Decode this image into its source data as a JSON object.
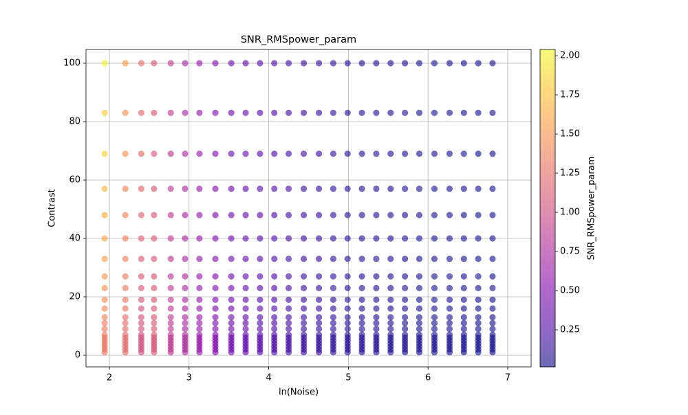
{
  "chart_data": {
    "type": "scatter",
    "title": "SNR_RMSpower_param",
    "x_label": "ln(Noise)",
    "y_label": "Contrast",
    "colorbar_label": "SNR_RMSpower_param",
    "colormap": "plasma",
    "alpha": 0.6,
    "grid": true,
    "xlim": [
      1.706,
      7.294
    ],
    "ylim": [
      -4.0,
      104.7
    ],
    "xticks": [
      2,
      3,
      4,
      5,
      6,
      7
    ],
    "yticks": [
      0,
      20,
      40,
      60,
      80,
      100
    ],
    "clim": [
      0.013,
      2.04
    ],
    "cticks": [
      0.25,
      {
        "value": 0.5,
        "label": "0.50"
      },
      0.75,
      {
        "value": 1.0,
        "label": "1.00"
      },
      1.25,
      {
        "value": 1.5,
        "label": "1.50"
      },
      1.75,
      {
        "value": 2.0,
        "label": "2.00"
      }
    ],
    "x": [
      1.94,
      2.2,
      2.4,
      2.56,
      2.77,
      2.95,
      3.13,
      3.33,
      3.53,
      3.71,
      3.89,
      4.07,
      4.25,
      4.44,
      4.63,
      4.81,
      4.99,
      5.17,
      5.35,
      5.53,
      5.71,
      5.89,
      6.08,
      6.27,
      6.45,
      6.63,
      6.81
    ],
    "y": [
      100,
      83,
      69,
      57,
      48,
      40,
      33,
      27,
      23,
      19,
      16,
      13,
      11,
      9,
      7,
      6,
      5,
      4,
      3,
      2,
      1
    ],
    "values": [
      [
        2.0,
        1.54,
        1.26,
        1.08,
        0.87,
        0.73,
        0.61,
        0.5,
        0.41,
        0.34,
        0.28,
        0.24,
        0.2,
        0.16,
        0.14,
        0.11,
        0.095,
        0.079,
        0.066,
        0.055,
        0.046,
        0.039,
        0.032,
        0.026,
        0.022,
        0.018,
        0.015
      ],
      [
        1.8,
        1.45,
        1.22,
        1.08,
        0.87,
        0.73,
        0.61,
        0.5,
        0.41,
        0.34,
        0.28,
        0.24,
        0.2,
        0.16,
        0.14,
        0.11,
        0.095,
        0.079,
        0.066,
        0.055,
        0.046,
        0.039,
        0.032,
        0.026,
        0.022,
        0.018,
        0.015
      ],
      [
        1.84,
        1.48,
        1.22,
        1.08,
        0.87,
        0.73,
        0.61,
        0.5,
        0.41,
        0.34,
        0.28,
        0.24,
        0.2,
        0.16,
        0.14,
        0.11,
        0.095,
        0.079,
        0.066,
        0.055,
        0.046,
        0.039,
        0.032,
        0.026,
        0.022,
        0.018,
        0.015
      ],
      [
        1.7,
        1.42,
        1.18,
        1.08,
        0.87,
        0.73,
        0.61,
        0.5,
        0.41,
        0.34,
        0.28,
        0.24,
        0.2,
        0.16,
        0.14,
        0.11,
        0.095,
        0.079,
        0.066,
        0.055,
        0.046,
        0.039,
        0.032,
        0.026,
        0.022,
        0.018,
        0.015
      ],
      [
        1.64,
        1.4,
        1.16,
        1.08,
        0.87,
        0.73,
        0.61,
        0.5,
        0.41,
        0.34,
        0.28,
        0.24,
        0.2,
        0.16,
        0.14,
        0.11,
        0.095,
        0.079,
        0.066,
        0.055,
        0.046,
        0.039,
        0.032,
        0.026,
        0.022,
        0.018,
        0.015
      ],
      [
        1.6,
        1.38,
        1.15,
        1.08,
        0.87,
        0.73,
        0.61,
        0.5,
        0.41,
        0.34,
        0.28,
        0.24,
        0.2,
        0.16,
        0.14,
        0.11,
        0.095,
        0.079,
        0.066,
        0.055,
        0.046,
        0.039,
        0.032,
        0.026,
        0.022,
        0.018,
        0.015
      ],
      [
        1.56,
        1.36,
        1.14,
        1.08,
        0.87,
        0.73,
        0.61,
        0.5,
        0.41,
        0.34,
        0.28,
        0.24,
        0.2,
        0.16,
        0.14,
        0.11,
        0.095,
        0.079,
        0.066,
        0.055,
        0.046,
        0.039,
        0.032,
        0.026,
        0.022,
        0.018,
        0.015
      ],
      [
        1.5,
        1.34,
        1.12,
        1.08,
        0.87,
        0.73,
        0.61,
        0.5,
        0.41,
        0.34,
        0.28,
        0.24,
        0.2,
        0.16,
        0.14,
        0.11,
        0.095,
        0.079,
        0.066,
        0.055,
        0.046,
        0.039,
        0.032,
        0.026,
        0.022,
        0.018,
        0.015
      ],
      [
        1.48,
        1.32,
        1.1,
        1.08,
        0.87,
        0.73,
        0.61,
        0.5,
        0.41,
        0.34,
        0.28,
        0.24,
        0.2,
        0.16,
        0.14,
        0.11,
        0.095,
        0.079,
        0.066,
        0.055,
        0.046,
        0.039,
        0.032,
        0.026,
        0.022,
        0.018,
        0.015
      ],
      [
        1.44,
        1.3,
        1.08,
        1.08,
        0.87,
        0.73,
        0.61,
        0.5,
        0.41,
        0.34,
        0.28,
        0.24,
        0.2,
        0.16,
        0.14,
        0.11,
        0.095,
        0.079,
        0.066,
        0.055,
        0.046,
        0.039,
        0.032,
        0.026,
        0.022,
        0.018,
        0.015
      ],
      [
        1.4,
        1.28,
        1.06,
        1.08,
        0.87,
        0.73,
        0.61,
        0.5,
        0.41,
        0.34,
        0.28,
        0.24,
        0.2,
        0.16,
        0.14,
        0.11,
        0.095,
        0.079,
        0.066,
        0.055,
        0.046,
        0.039,
        0.032,
        0.026,
        0.022,
        0.018,
        0.015
      ],
      [
        1.36,
        1.26,
        1.05,
        1.08,
        0.87,
        0.73,
        0.61,
        0.5,
        0.41,
        0.34,
        0.28,
        0.24,
        0.2,
        0.16,
        0.14,
        0.11,
        0.095,
        0.079,
        0.066,
        0.055,
        0.046,
        0.039,
        0.032,
        0.026,
        0.022,
        0.018,
        0.015
      ],
      [
        1.34,
        1.25,
        1.04,
        1.08,
        0.87,
        0.73,
        0.61,
        0.5,
        0.41,
        0.34,
        0.28,
        0.24,
        0.2,
        0.16,
        0.14,
        0.11,
        0.095,
        0.079,
        0.066,
        0.055,
        0.046,
        0.039,
        0.032,
        0.026,
        0.022,
        0.018,
        0.015
      ],
      [
        1.32,
        1.24,
        1.03,
        1.08,
        0.87,
        0.73,
        0.61,
        0.5,
        0.41,
        0.34,
        0.28,
        0.24,
        0.2,
        0.16,
        0.14,
        0.11,
        0.095,
        0.079,
        0.066,
        0.055,
        0.046,
        0.039,
        0.032,
        0.026,
        0.022,
        0.018,
        0.015
      ],
      [
        1.3,
        1.23,
        1.02,
        1.08,
        0.87,
        0.73,
        0.61,
        0.5,
        0.41,
        0.34,
        0.28,
        0.24,
        0.2,
        0.16,
        0.14,
        0.11,
        0.095,
        0.079,
        0.066,
        0.055,
        0.046,
        0.039,
        0.032,
        0.026,
        0.022,
        0.018,
        0.015
      ],
      [
        1.3,
        1.23,
        1.02,
        1.08,
        0.87,
        0.73,
        0.61,
        0.5,
        0.41,
        0.34,
        0.28,
        0.24,
        0.2,
        0.16,
        0.14,
        0.11,
        0.095,
        0.079,
        0.066,
        0.055,
        0.046,
        0.039,
        0.032,
        0.026,
        0.022,
        0.018,
        0.015
      ],
      [
        1.3,
        1.23,
        1.02,
        1.08,
        0.87,
        0.73,
        0.61,
        0.5,
        0.41,
        0.34,
        0.28,
        0.24,
        0.2,
        0.16,
        0.14,
        0.11,
        0.095,
        0.079,
        0.066,
        0.055,
        0.046,
        0.039,
        0.032,
        0.026,
        0.022,
        0.018,
        0.015
      ],
      [
        1.3,
        1.23,
        1.02,
        1.08,
        0.87,
        0.73,
        0.61,
        0.5,
        0.41,
        0.34,
        0.28,
        0.24,
        0.2,
        0.16,
        0.14,
        0.11,
        0.095,
        0.079,
        0.066,
        0.055,
        0.046,
        0.039,
        0.032,
        0.026,
        0.022,
        0.018,
        0.015
      ],
      [
        1.3,
        1.23,
        1.02,
        1.08,
        0.87,
        0.73,
        0.61,
        0.5,
        0.41,
        0.34,
        0.28,
        0.24,
        0.2,
        0.16,
        0.14,
        0.11,
        0.095,
        0.079,
        0.066,
        0.055,
        0.046,
        0.039,
        0.032,
        0.026,
        0.022,
        0.018,
        0.015
      ],
      [
        1.3,
        1.23,
        1.02,
        1.08,
        0.87,
        0.73,
        0.61,
        0.5,
        0.41,
        0.34,
        0.28,
        0.24,
        0.2,
        0.16,
        0.14,
        0.11,
        0.095,
        0.079,
        0.066,
        0.055,
        0.046,
        0.039,
        0.032,
        0.026,
        0.022,
        0.018,
        0.015
      ],
      [
        1.3,
        1.23,
        1.02,
        1.08,
        0.87,
        0.73,
        0.61,
        0.5,
        0.41,
        0.34,
        0.28,
        0.24,
        0.2,
        0.16,
        0.14,
        0.11,
        0.095,
        0.079,
        0.066,
        0.055,
        0.046,
        0.039,
        0.032,
        0.026,
        0.022,
        0.018,
        0.015
      ]
    ]
  }
}
